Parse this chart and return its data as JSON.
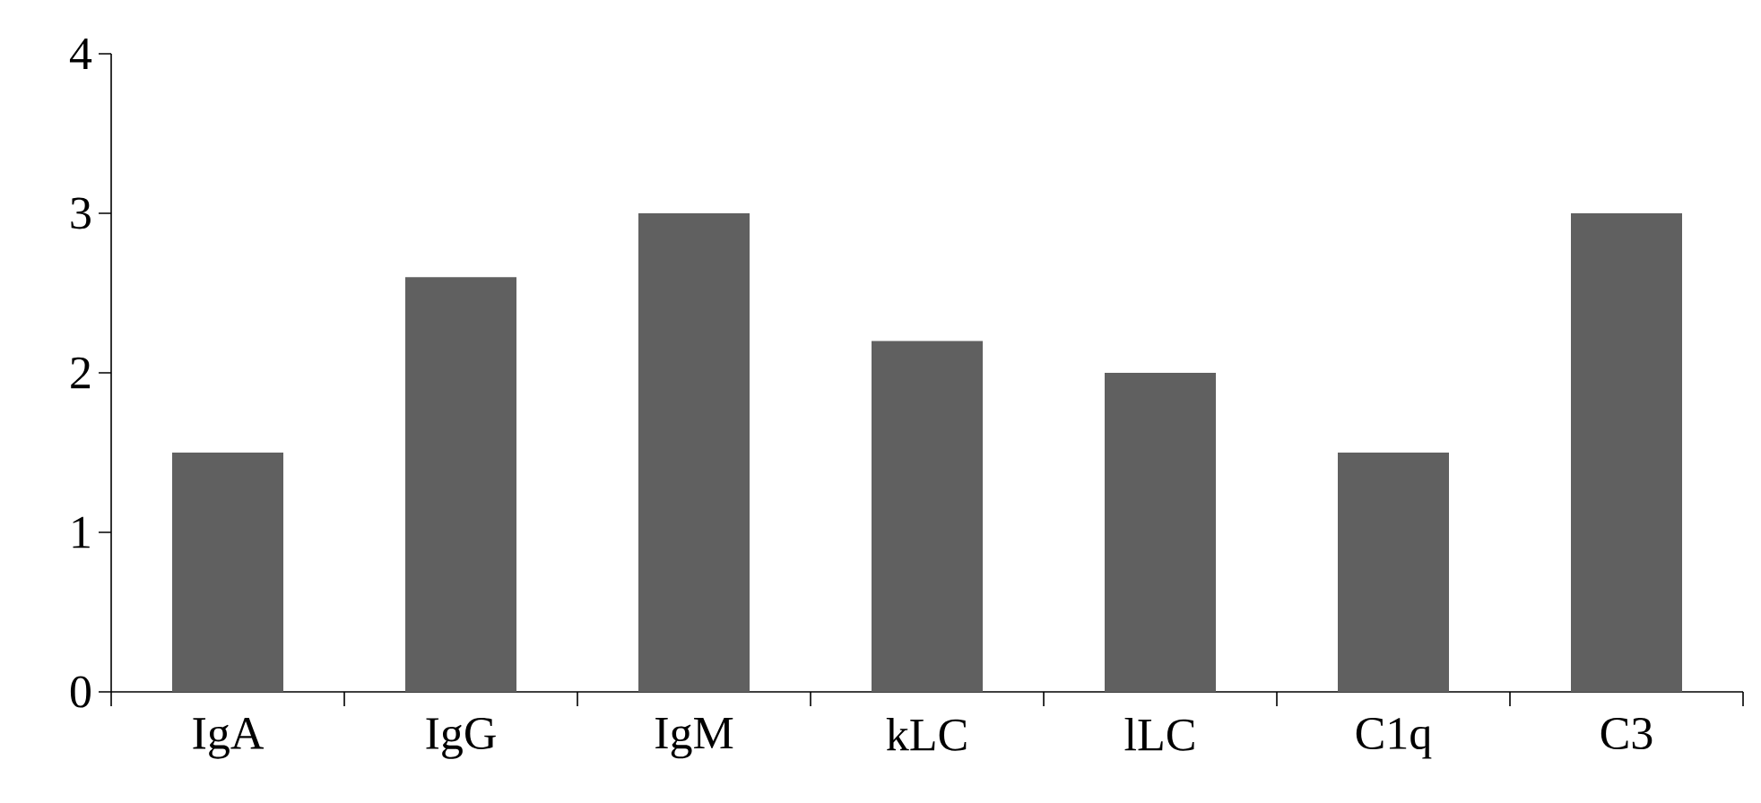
{
  "chart_data": {
    "type": "bar",
    "categories": [
      "IgA",
      "IgG",
      "IgM",
      "kLC",
      "lLC",
      "C1q",
      "C3"
    ],
    "values": [
      1.5,
      2.6,
      3.0,
      2.2,
      2.0,
      1.5,
      3.0
    ],
    "color": "#606060",
    "ylim": [
      0,
      4
    ],
    "yticks": [
      0,
      1,
      2,
      3,
      4
    ],
    "grid": false
  }
}
